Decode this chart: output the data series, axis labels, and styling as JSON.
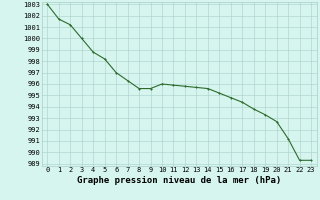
{
  "x": [
    0,
    1,
    2,
    3,
    4,
    5,
    6,
    7,
    8,
    9,
    10,
    11,
    12,
    13,
    14,
    15,
    16,
    17,
    18,
    19,
    20,
    21,
    22,
    23
  ],
  "y": [
    1003.0,
    1001.7,
    1001.2,
    1000.0,
    998.8,
    998.2,
    997.0,
    996.3,
    995.6,
    995.6,
    996.0,
    995.9,
    995.8,
    995.7,
    995.6,
    995.2,
    994.8,
    994.4,
    993.8,
    993.3,
    992.7,
    991.2,
    989.3,
    989.3
  ],
  "line_color": "#2d6b2d",
  "marker_color": "#2d6b2d",
  "background_color": "#d6f5ef",
  "grid_color": "#a8cfc9",
  "title": "Graphe pression niveau de la mer (hPa)",
  "ylim_min": 988.8,
  "ylim_max": 1003.2,
  "xlim_min": -0.5,
  "xlim_max": 23.5,
  "yticks": [
    989,
    990,
    991,
    992,
    993,
    994,
    995,
    996,
    997,
    998,
    999,
    1000,
    1001,
    1002,
    1003
  ],
  "xticks": [
    0,
    1,
    2,
    3,
    4,
    5,
    6,
    7,
    8,
    9,
    10,
    11,
    12,
    13,
    14,
    15,
    16,
    17,
    18,
    19,
    20,
    21,
    22,
    23
  ],
  "tick_fontsize": 5.0,
  "title_fontsize": 6.5,
  "title_fontweight": "bold",
  "linewidth": 0.8,
  "markersize": 2.0
}
